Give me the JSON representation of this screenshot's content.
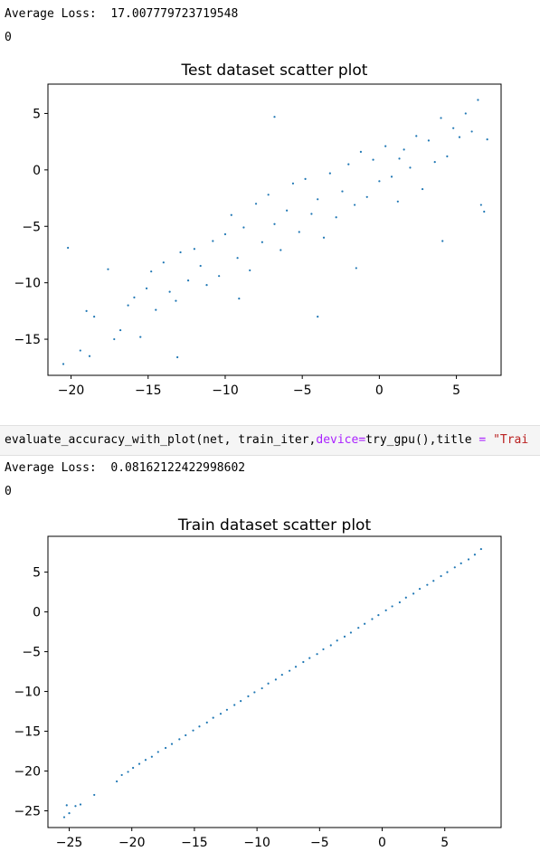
{
  "output1": {
    "loss_line": "Average Loss:  17.007779723719548",
    "zero_line": "0"
  },
  "code_cell": {
    "part1": "evaluate_accuracy_with_plot(net, train_iter,",
    "kw": "device",
    "eq1": "=",
    "part2": "try_gpu(),title ",
    "eq2": "=",
    "space": " ",
    "str": "\"Trai"
  },
  "output2": {
    "loss_line": "Average Loss:  0.08162122422998602",
    "zero_line": "0"
  },
  "chart_data": [
    {
      "type": "scatter",
      "title": "Test dataset scatter plot",
      "xlabel": "",
      "ylabel": "",
      "xlim": [
        -21.5,
        7.9
      ],
      "ylim": [
        -18.2,
        7.6
      ],
      "xticks": [
        -20,
        -15,
        -10,
        -5,
        0,
        5
      ],
      "yticks": [
        -15,
        -10,
        -5,
        0,
        5
      ],
      "xtick_labels": [
        "−20",
        "−15",
        "−10",
        "−5",
        "0",
        "5"
      ],
      "ytick_labels": [
        "−15",
        "−10",
        "−5",
        "0",
        "5"
      ],
      "color": "#1f77b4",
      "grid": false,
      "x": [
        -20.5,
        -20.2,
        -19.4,
        -18.8,
        -19.0,
        -18.5,
        -17.6,
        -17.2,
        -16.8,
        -16.3,
        -15.9,
        -15.5,
        -15.1,
        -14.8,
        -14.5,
        -14.0,
        -13.6,
        -13.2,
        -12.9,
        -12.4,
        -12.0,
        -11.6,
        -11.2,
        -10.8,
        -10.4,
        -10.0,
        -9.6,
        -9.2,
        -8.8,
        -8.4,
        -8.0,
        -7.6,
        -7.2,
        -6.8,
        -6.4,
        -6.0,
        -5.6,
        -5.2,
        -4.8,
        -4.4,
        -4.0,
        -3.6,
        -3.2,
        -2.8,
        -2.4,
        -2.0,
        -1.6,
        -1.2,
        -0.8,
        -0.4,
        0.0,
        0.4,
        0.8,
        1.2,
        1.6,
        2.0,
        2.4,
        2.8,
        3.2,
        3.6,
        4.0,
        4.4,
        4.8,
        5.2,
        5.6,
        6.0,
        6.4,
        6.8,
        7.0,
        -13.1,
        -9.1,
        -6.8,
        -4.0,
        -1.5,
        1.3,
        4.1,
        6.6
      ],
      "y": [
        -17.2,
        -6.9,
        -16.0,
        -16.5,
        -12.5,
        -13.0,
        -8.8,
        -15.0,
        -14.2,
        -12.0,
        -11.3,
        -14.8,
        -10.5,
        -9.0,
        -12.4,
        -8.2,
        -10.8,
        -11.6,
        -7.3,
        -9.8,
        -7.0,
        -8.5,
        -10.2,
        -6.3,
        -9.4,
        -5.7,
        -4.0,
        -7.8,
        -5.1,
        -8.9,
        -3.0,
        -6.4,
        -2.2,
        -4.8,
        -7.1,
        -3.6,
        -1.2,
        -5.5,
        -0.8,
        -3.9,
        -2.6,
        -6.0,
        -0.3,
        -4.2,
        -1.9,
        0.5,
        -3.1,
        1.6,
        -2.4,
        0.9,
        -1.0,
        2.1,
        -0.6,
        -2.8,
        1.8,
        0.2,
        3.0,
        -1.7,
        2.6,
        0.7,
        4.6,
        1.2,
        3.7,
        2.9,
        5.0,
        3.4,
        6.2,
        -3.7,
        2.7,
        -16.6,
        -11.4,
        4.7,
        -13.0,
        -8.7,
        1.0,
        -6.3,
        -3.1
      ]
    },
    {
      "type": "scatter",
      "title": "Train dataset scatter plot",
      "xlabel": "",
      "ylabel": "",
      "xlim": [
        -26.7,
        9.5
      ],
      "ylim": [
        -27.1,
        9.5
      ],
      "xticks": [
        -25,
        -20,
        -15,
        -10,
        -5,
        0,
        5
      ],
      "yticks": [
        -25,
        -20,
        -15,
        -10,
        -5,
        0,
        5
      ],
      "xtick_labels": [
        "−25",
        "−20",
        "−15",
        "−10",
        "−5",
        "0",
        "5"
      ],
      "ytick_labels": [
        "−25",
        "−20",
        "−15",
        "−10",
        "−5",
        "0",
        "5"
      ],
      "color": "#1f77b4",
      "grid": false,
      "x": [
        -25.4,
        -25.2,
        -25.0,
        -24.5,
        -24.1,
        -23.0,
        -21.2,
        -20.8,
        -20.3,
        -19.9,
        -19.4,
        -18.9,
        -18.4,
        -17.9,
        -17.3,
        -16.8,
        -16.2,
        -15.7,
        -15.1,
        -14.6,
        -14.0,
        -13.5,
        -12.9,
        -12.4,
        -11.8,
        -11.3,
        -10.7,
        -10.2,
        -9.6,
        -9.1,
        -8.5,
        -8.0,
        -7.4,
        -6.9,
        -6.3,
        -5.8,
        -5.2,
        -4.7,
        -4.1,
        -3.6,
        -3.0,
        -2.5,
        -1.9,
        -1.4,
        -0.8,
        -0.3,
        0.3,
        0.8,
        1.4,
        1.9,
        2.5,
        3.0,
        3.6,
        4.1,
        4.7,
        5.2,
        5.8,
        6.3,
        6.9,
        7.4,
        7.9
      ],
      "y": [
        -25.8,
        -24.3,
        -25.3,
        -24.4,
        -24.2,
        -23.0,
        -21.3,
        -20.5,
        -20.1,
        -19.6,
        -19.1,
        -18.6,
        -18.2,
        -17.6,
        -17.1,
        -16.6,
        -16.0,
        -15.5,
        -14.9,
        -14.4,
        -13.9,
        -13.3,
        -12.8,
        -12.3,
        -11.7,
        -11.2,
        -10.6,
        -10.1,
        -9.6,
        -9.0,
        -8.5,
        -7.9,
        -7.4,
        -6.9,
        -6.3,
        -5.8,
        -5.3,
        -4.7,
        -4.2,
        -3.6,
        -3.1,
        -2.6,
        -2.0,
        -1.5,
        -0.9,
        -0.4,
        0.2,
        0.7,
        1.2,
        1.8,
        2.3,
        2.9,
        3.4,
        3.9,
        4.5,
        5.0,
        5.6,
        6.1,
        6.6,
        7.2,
        7.9
      ]
    }
  ]
}
